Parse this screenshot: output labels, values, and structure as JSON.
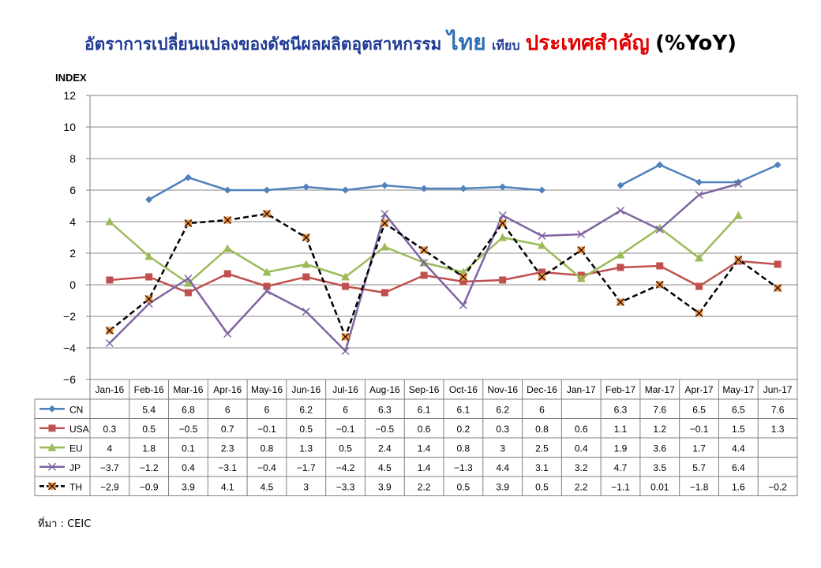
{
  "title": {
    "part1": "อัตราการเปลี่ยนแปลงของดัชนีผลผลิตอุตสาหกรรม",
    "part2": "ไทย",
    "part3": "เทียบ",
    "part4": "ประเทศสำคัญ",
    "part5": "(%YoY)"
  },
  "source": "ที่มา : CEIC",
  "colors": {
    "CN": "#4f81bd",
    "USA": "#c0504d",
    "EU": "#9bbb59",
    "JP": "#8064a2",
    "TH": "#000000",
    "TH_marker": "#f79646"
  },
  "chart_data": {
    "type": "line",
    "ylabel": "INDEX",
    "ylim": [
      -6,
      12
    ],
    "yticks": [
      12,
      10,
      8,
      6,
      4,
      2,
      0,
      -2,
      -4,
      -6
    ],
    "categories": [
      "Jan-16",
      "Feb-16",
      "Mar-16",
      "Apr-16",
      "May-16",
      "Jun-16",
      "Jul-16",
      "Aug-16",
      "Sep-16",
      "Oct-16",
      "Nov-16",
      "Dec-16",
      "Jan-17",
      "Feb-17",
      "Mar-17",
      "Apr-17",
      "May-17",
      "Jun-17"
    ],
    "series": [
      {
        "name": "CN",
        "values": [
          null,
          5.4,
          6.8,
          6,
          6,
          6.2,
          6,
          6.3,
          6.1,
          6.1,
          6.2,
          6,
          null,
          6.3,
          7.6,
          6.5,
          6.5,
          7.6
        ],
        "labels": [
          "",
          "5.4",
          "6.8",
          "6",
          "6",
          "6.2",
          "6",
          "6.3",
          "6.1",
          "6.1",
          "6.2",
          "6",
          "",
          "6.3",
          "7.6",
          "6.5",
          "6.5",
          "7.6"
        ]
      },
      {
        "name": "USA",
        "values": [
          0.3,
          0.5,
          -0.5,
          0.7,
          -0.1,
          0.5,
          -0.1,
          -0.5,
          0.6,
          0.2,
          0.3,
          0.8,
          0.6,
          1.1,
          1.2,
          -0.1,
          1.5,
          1.3
        ],
        "labels": [
          "0.3",
          "0.5",
          "−0.5",
          "0.7",
          "−0.1",
          "0.5",
          "−0.1",
          "−0.5",
          "0.6",
          "0.2",
          "0.3",
          "0.8",
          "0.6",
          "1.1",
          "1.2",
          "−0.1",
          "1.5",
          "1.3"
        ]
      },
      {
        "name": "EU",
        "values": [
          4,
          1.8,
          0.1,
          2.3,
          0.8,
          1.3,
          0.5,
          2.4,
          1.4,
          0.8,
          3,
          2.5,
          0.4,
          1.9,
          3.6,
          1.7,
          4.4,
          null
        ],
        "labels": [
          "4",
          "1.8",
          "0.1",
          "2.3",
          "0.8",
          "1.3",
          "0.5",
          "2.4",
          "1.4",
          "0.8",
          "3",
          "2.5",
          "0.4",
          "1.9",
          "3.6",
          "1.7",
          "4.4",
          ""
        ]
      },
      {
        "name": "JP",
        "values": [
          -3.7,
          -1.2,
          0.4,
          -3.1,
          -0.4,
          -1.7,
          -4.2,
          4.5,
          1.4,
          -1.3,
          4.4,
          3.1,
          3.2,
          4.7,
          3.5,
          5.7,
          6.4,
          null
        ],
        "labels": [
          "−3.7",
          "−1.2",
          "0.4",
          "−3.1",
          "−0.4",
          "−1.7",
          "−4.2",
          "4.5",
          "1.4",
          "−1.3",
          "4.4",
          "3.1",
          "3.2",
          "4.7",
          "3.5",
          "5.7",
          "6.4",
          ""
        ]
      },
      {
        "name": "TH",
        "values": [
          -2.9,
          -0.9,
          3.9,
          4.1,
          4.5,
          3,
          -3.3,
          3.9,
          2.2,
          0.5,
          3.9,
          0.5,
          2.2,
          -1.1,
          0.01,
          -1.8,
          1.6,
          -0.2
        ],
        "labels": [
          "−2.9",
          "−0.9",
          "3.9",
          "4.1",
          "4.5",
          "3",
          "−3.3",
          "3.9",
          "2.2",
          "0.5",
          "3.9",
          "0.5",
          "2.2",
          "−1.1",
          "0.01",
          "−1.8",
          "1.6",
          "−0.2"
        ]
      }
    ]
  }
}
